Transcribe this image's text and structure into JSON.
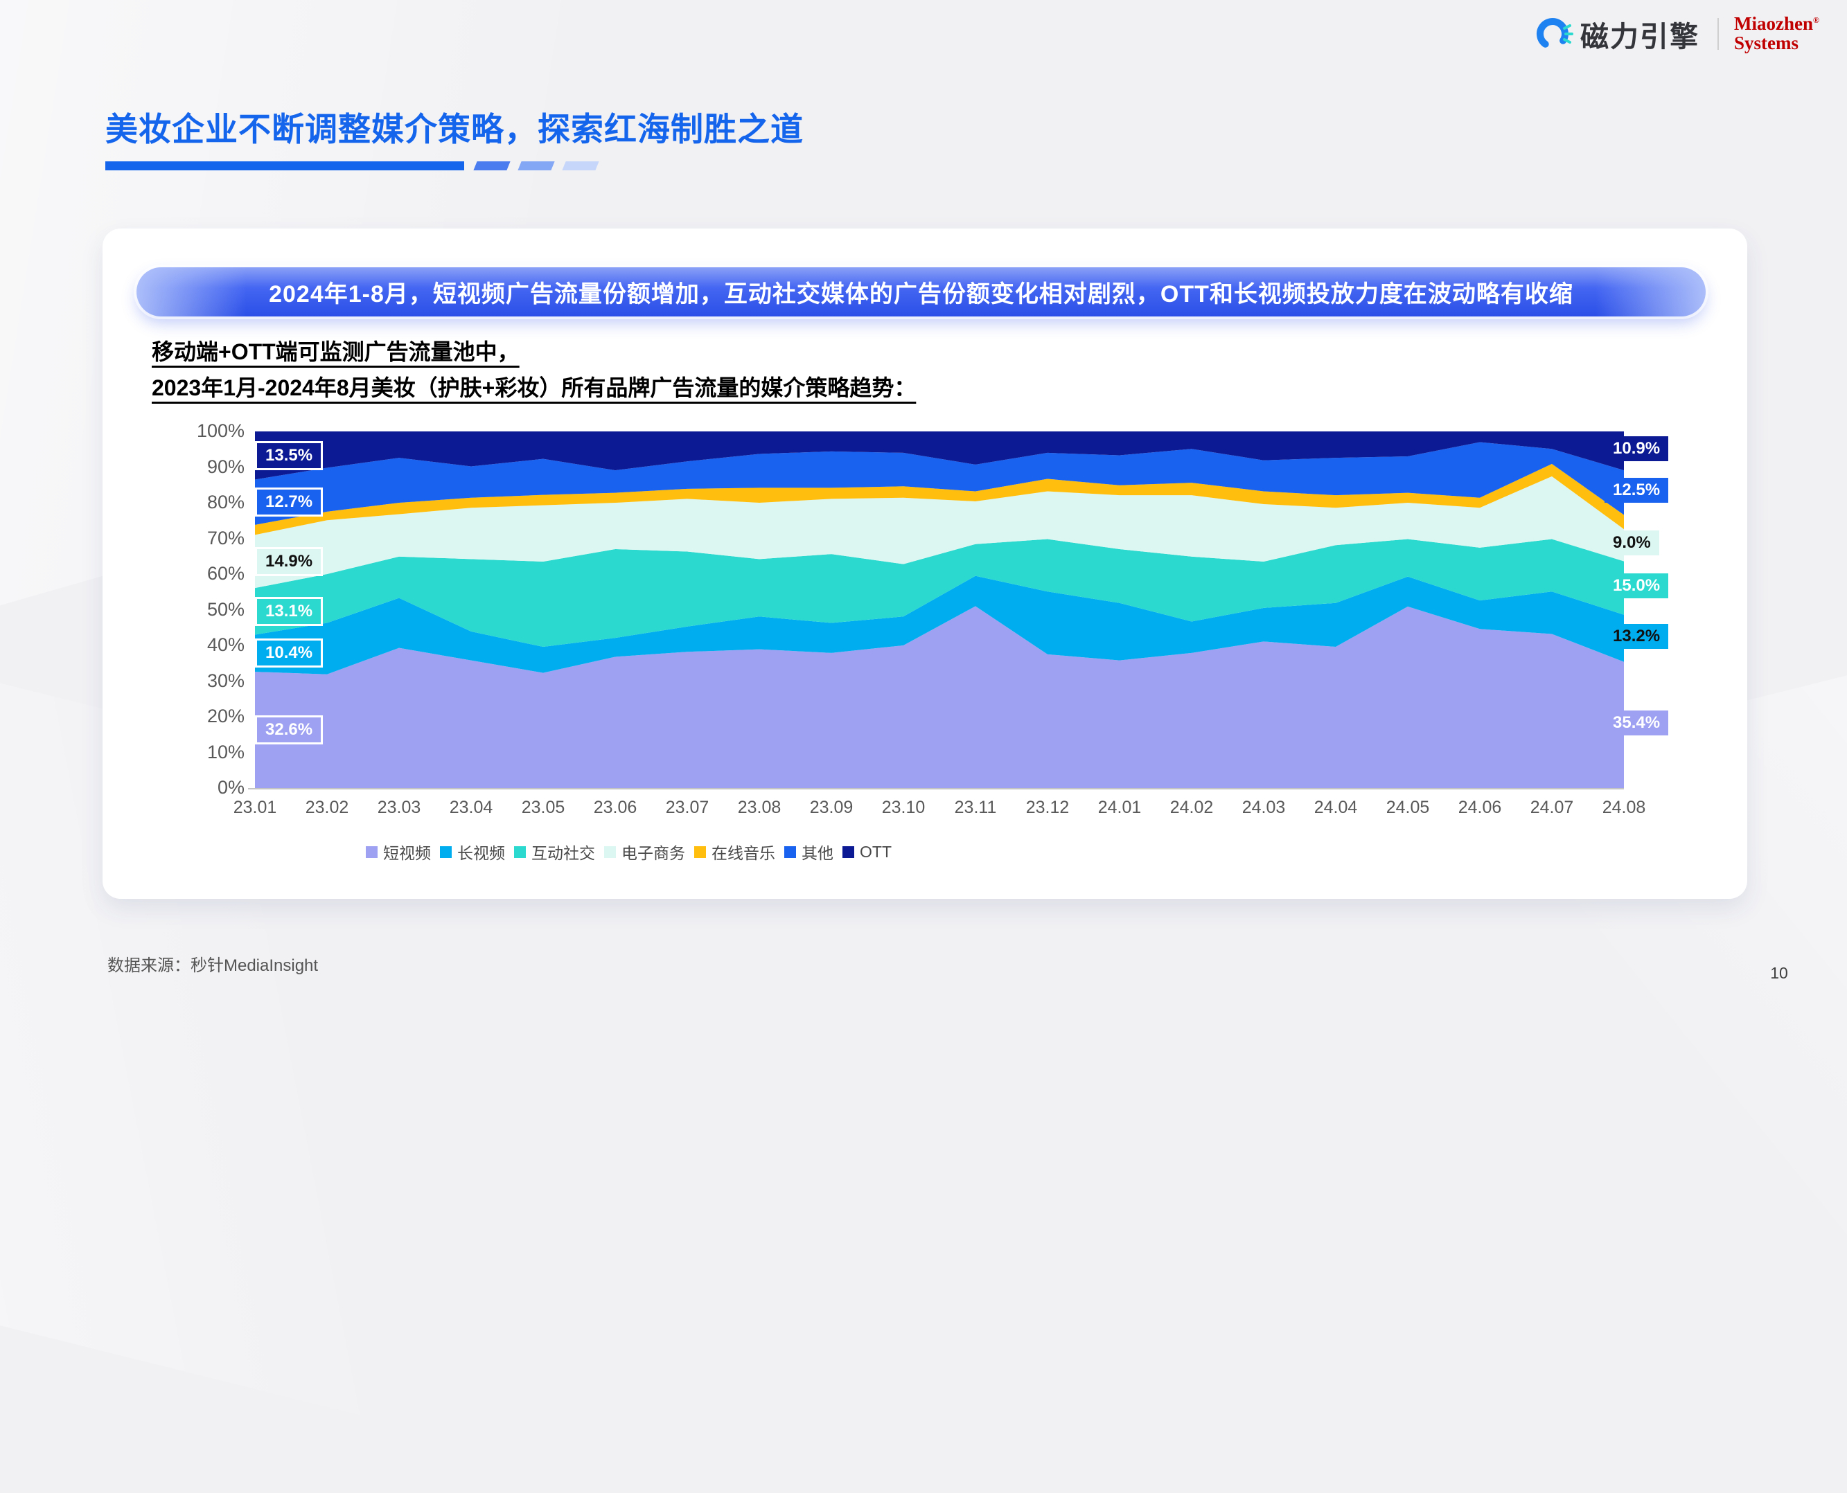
{
  "header": {
    "logo_text": "磁力引擎",
    "partner_line1": "Miaozhen",
    "partner_reg": "®",
    "partner_line2": "Systems"
  },
  "title": {
    "text": "美妆企业不断调整媒介策略，探索红海制胜之道"
  },
  "banner": {
    "text": "2024年1-8月，短视频广告流量份额增加，互动社交媒体的广告份额变化相对剧烈，OTT和长视频投放力度在波动略有收缩"
  },
  "subtitle": {
    "line1": "移动端+OTT端可监测广告流量池中，",
    "line2": "2023年1月-2024年8月美妆（护肤+彩妆）所有品牌广告流量的媒介策略趋势："
  },
  "chart_data": {
    "type": "area",
    "stacked": true,
    "percent": true,
    "ylim": [
      0,
      100
    ],
    "grid": false,
    "legend_position": "bottom",
    "y_tick_labels": [
      "0%",
      "10%",
      "20%",
      "30%",
      "40%",
      "50%",
      "60%",
      "70%",
      "80%",
      "90%",
      "100%"
    ],
    "x": [
      "23.01",
      "23.02",
      "23.03",
      "23.04",
      "23.05",
      "23.06",
      "23.07",
      "23.08",
      "23.09",
      "23.10",
      "23.11",
      "23.12",
      "24.01",
      "24.02",
      "24.03",
      "24.04",
      "24.05",
      "24.06",
      "24.07",
      "24.08"
    ],
    "series": [
      {
        "name": "短视频",
        "color": "#9ea1f1",
        "values": [
          32.6,
          31.9,
          39.3,
          35.8,
          32.3,
          36.8,
          38.2,
          38.9,
          37.9,
          40.0,
          51.0,
          37.5,
          35.8,
          37.9,
          41.1,
          39.6,
          50.9,
          44.6,
          43.2,
          35.4
        ]
      },
      {
        "name": "长视频",
        "color": "#00aeef",
        "values": [
          10.4,
          14.4,
          14.0,
          8.1,
          7.3,
          5.3,
          7.1,
          9.2,
          8.4,
          8.1,
          8.5,
          17.6,
          16.1,
          8.8,
          9.4,
          12.3,
          8.4,
          8.0,
          11.9,
          13.2
        ]
      },
      {
        "name": "互动社交",
        "color": "#2bd9ce",
        "values": [
          13.1,
          13.7,
          11.6,
          20.3,
          23.9,
          24.9,
          21.0,
          16.1,
          19.3,
          14.7,
          8.9,
          14.7,
          15.1,
          18.2,
          13.0,
          16.2,
          10.5,
          14.8,
          14.7,
          15.0
        ]
      },
      {
        "name": "电子商务",
        "color": "#dcf6f1",
        "values": [
          14.9,
          15.1,
          11.9,
          14.4,
          15.8,
          13.0,
          14.8,
          15.8,
          15.5,
          18.6,
          12.0,
          13.4,
          15.1,
          17.2,
          16.1,
          10.5,
          10.2,
          11.2,
          17.6,
          9.0
        ]
      },
      {
        "name": "在线音乐",
        "color": "#ffbe0d",
        "values": [
          2.8,
          2.4,
          3.2,
          2.8,
          2.9,
          2.8,
          2.8,
          4.2,
          3.1,
          3.2,
          2.8,
          3.5,
          2.8,
          3.5,
          3.6,
          3.5,
          2.8,
          2.8,
          3.5,
          4.0
        ]
      },
      {
        "name": "其他",
        "color": "#1961ef",
        "values": [
          12.7,
          12.3,
          12.6,
          8.8,
          10.1,
          6.3,
          7.7,
          9.5,
          10.2,
          9.4,
          7.5,
          7.3,
          8.4,
          9.5,
          8.7,
          10.5,
          10.2,
          15.6,
          4.2,
          12.5
        ]
      },
      {
        "name": "OTT",
        "color": "#0c1a94",
        "values": [
          13.5,
          10.2,
          7.4,
          9.8,
          7.7,
          10.9,
          8.4,
          6.3,
          5.6,
          6.0,
          9.3,
          6.0,
          6.7,
          4.9,
          8.1,
          7.4,
          7.0,
          3.0,
          4.9,
          10.9
        ]
      }
    ],
    "edge_labels": [
      {
        "side": "left",
        "series": "OTT",
        "text": "13.5%",
        "text_color": "#ffffff",
        "bordered": true
      },
      {
        "side": "left",
        "series": "其他",
        "text": "12.7%",
        "text_color": "#ffffff",
        "bordered": true
      },
      {
        "side": "left",
        "series": "电子商务",
        "text": "14.9%",
        "text_color": "#111111",
        "bordered": true
      },
      {
        "side": "left",
        "series": "互动社交",
        "text": "13.1%",
        "text_color": "#ffffff",
        "bordered": true
      },
      {
        "side": "left",
        "series": "长视频",
        "text": "10.4%",
        "text_color": "#ffffff",
        "bordered": true
      },
      {
        "side": "left",
        "series": "短视频",
        "text": "32.6%",
        "text_color": "#ffffff",
        "bordered": true
      },
      {
        "side": "right",
        "series": "OTT",
        "text": "10.9%",
        "text_color": "#ffffff",
        "bordered": false
      },
      {
        "side": "right",
        "series": "其他",
        "text": "12.5%",
        "text_color": "#ffffff",
        "bordered": false
      },
      {
        "side": "right",
        "series": "电子商务",
        "text": "9.0%",
        "text_color": "#111111",
        "bordered": false
      },
      {
        "side": "right",
        "series": "互动社交",
        "text": "15.0%",
        "text_color": "#ffffff",
        "bordered": false
      },
      {
        "side": "right",
        "series": "长视频",
        "text": "13.2%",
        "text_color": "#111111",
        "bordered": false
      },
      {
        "side": "right",
        "series": "短视频",
        "text": "35.4%",
        "text_color": "#ffffff",
        "bordered": false
      }
    ]
  },
  "footer": {
    "source": "数据来源：秒针MediaInsight",
    "page": "10"
  }
}
